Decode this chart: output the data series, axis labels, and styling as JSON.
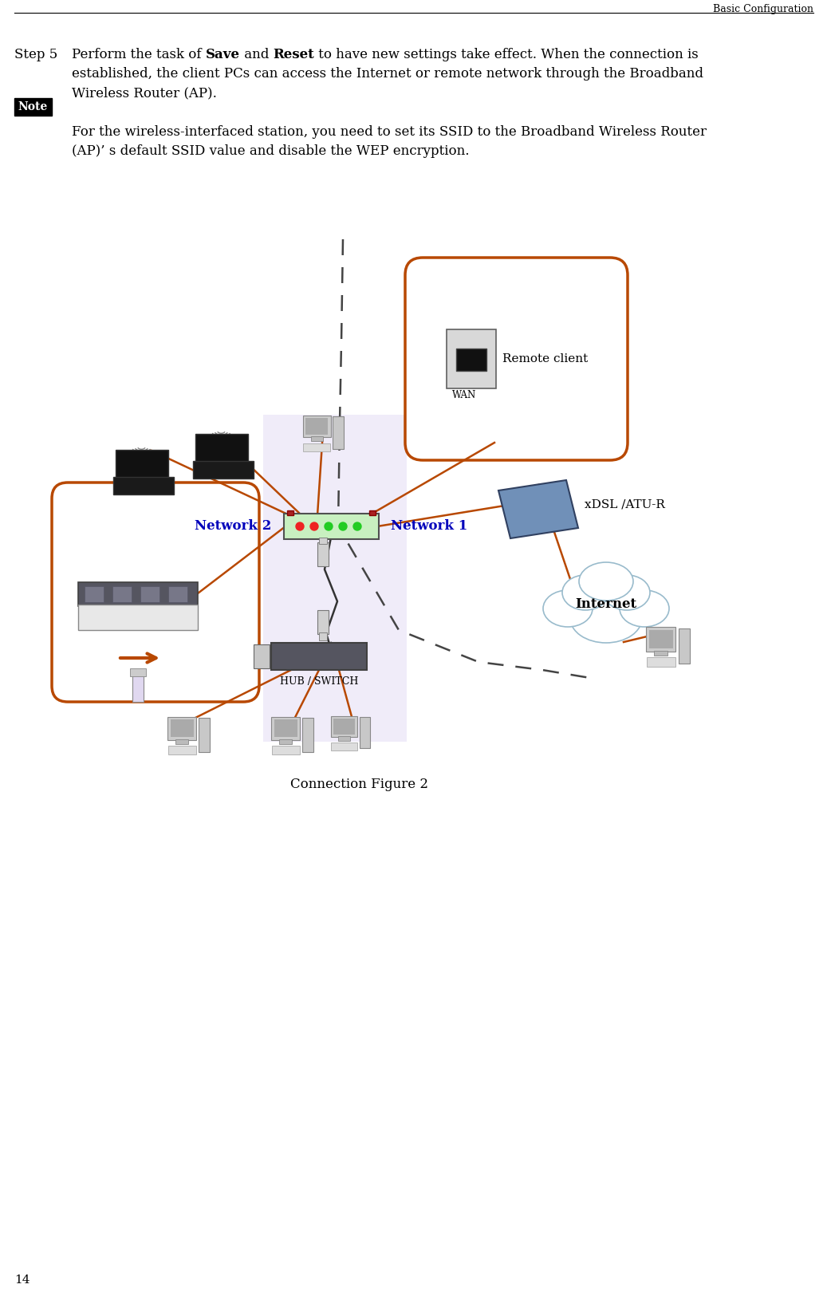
{
  "header_text": "Basic Configuration",
  "page_number": "14",
  "step5_label": "Step 5",
  "step5_line1_pre": "Perform the task of ",
  "step5_bold1": "Save",
  "step5_mid": " and ",
  "step5_bold2": "Reset",
  "step5_end": " to have new settings take effect. When the connection is",
  "step5_line2": "established, the client PCs can access the Internet or remote network through the Broadband",
  "step5_line3": "Wireless Router (AP).",
  "note_label": "Note",
  "note_line1": "For the wireless-interfaced station, you need to set its SSID to the Broadband Wireless Router",
  "note_line2": "(AP)’ s default SSID value and disable the WEP encryption.",
  "caption": "Connection Figure 2",
  "label_network1": "Network 1",
  "label_network2": "Network 2",
  "label_remote": "Remote client",
  "label_xdsl": "xDSL /ATU-R",
  "label_internet": "Internet",
  "label_hub": "HUB / SWITCH",
  "label_wan": "WAN",
  "bg_color": "#ffffff",
  "text_color": "#000000",
  "blue_color": "#0000bb",
  "orange_color": "#b84800",
  "cloud_edge": "#99bbcc",
  "diag_bg": "#ede8f8"
}
